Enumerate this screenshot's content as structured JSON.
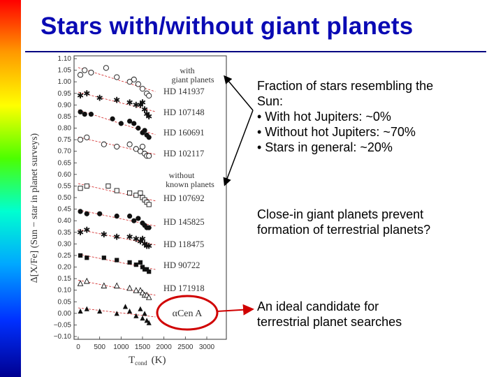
{
  "slide": {
    "title": "Stars with/without giant planets",
    "colors": {
      "title": "#0a0ab4",
      "sidebar_top": "#ff0000",
      "sidebar_bottom": "#000090",
      "callout": "#d00000"
    }
  },
  "figure": {
    "ylabel": "Δ[X/Fe] (Sun − star in planet surveys)",
    "xlabel": "T",
    "xlabel_sub": "cond",
    "xlabel_unit": "(K)",
    "y_ticks": [
      "1.10",
      "1.05",
      "1.00",
      "0.95",
      "0.90",
      "0.85",
      "0.80",
      "0.75",
      "0.70",
      "0.65",
      "0.60",
      "0.55",
      "0.50",
      "0.45",
      "0.40",
      "0.35",
      "0.30",
      "0.25",
      "0.20",
      "0.15",
      "0.10",
      "0.05",
      "0.00",
      "−0.05",
      "−0.10"
    ],
    "x_ticks": [
      "0",
      "500",
      "1000",
      "1500",
      "2000",
      "2500",
      "3000"
    ],
    "group_with": [
      "with",
      "giant planets"
    ],
    "group_without": [
      "without",
      "known planets"
    ],
    "stars": [
      "HD 141937",
      "HD 107148",
      "HD 160691",
      "HD 102117",
      "HD 107692",
      "HD 145825",
      "HD 118475",
      "HD 90722",
      "HD 171918"
    ],
    "callout_label": "αCen A"
  },
  "chart_data": {
    "type": "scatter",
    "xlabel": "T cond (K)",
    "ylabel": "Δ[X/Fe] (Sun − star in planet surveys)",
    "xlim": [
      0,
      3000
    ],
    "ylim": [
      -0.1,
      1.1
    ],
    "series": [
      {
        "name": "HD 141937",
        "marker": "open-circle",
        "x": [
          50,
          150,
          300,
          650,
          900,
          1200,
          1300,
          1400,
          1500,
          1600,
          1650
        ],
        "y": [
          1.03,
          1.05,
          1.04,
          1.06,
          1.02,
          1.0,
          1.01,
          0.99,
          0.97,
          0.95,
          0.94
        ]
      },
      {
        "name": "HD 107148",
        "marker": "star",
        "x": [
          50,
          200,
          500,
          900,
          1200,
          1350,
          1450,
          1500,
          1550,
          1600,
          1650
        ],
        "y": [
          0.94,
          0.95,
          0.93,
          0.92,
          0.91,
          0.9,
          0.9,
          0.91,
          0.88,
          0.86,
          0.85
        ]
      },
      {
        "name": "HD 160691",
        "marker": "filled-circle",
        "x": [
          50,
          150,
          300,
          800,
          1000,
          1200,
          1300,
          1400,
          1500,
          1550,
          1600,
          1650
        ],
        "y": [
          0.87,
          0.86,
          0.86,
          0.84,
          0.82,
          0.83,
          0.82,
          0.8,
          0.78,
          0.79,
          0.77,
          0.76
        ]
      },
      {
        "name": "HD 102117",
        "marker": "open-circle",
        "x": [
          50,
          200,
          600,
          900,
          1200,
          1350,
          1450,
          1500,
          1550,
          1600,
          1650
        ],
        "y": [
          0.75,
          0.76,
          0.73,
          0.72,
          0.73,
          0.71,
          0.7,
          0.72,
          0.69,
          0.68,
          0.68
        ]
      },
      {
        "name": "HD 107692",
        "marker": "open-square",
        "x": [
          50,
          200,
          700,
          900,
          1200,
          1350,
          1450,
          1500,
          1550,
          1600,
          1650
        ],
        "y": [
          0.54,
          0.55,
          0.55,
          0.53,
          0.52,
          0.51,
          0.52,
          0.5,
          0.49,
          0.48,
          0.47
        ]
      },
      {
        "name": "HD 145825",
        "marker": "filled-circle",
        "x": [
          50,
          200,
          500,
          900,
          1200,
          1300,
          1400,
          1500,
          1550,
          1600,
          1650
        ],
        "y": [
          0.44,
          0.43,
          0.43,
          0.42,
          0.42,
          0.4,
          0.41,
          0.39,
          0.38,
          0.37,
          0.37
        ]
      },
      {
        "name": "HD 118475",
        "marker": "star",
        "x": [
          50,
          200,
          600,
          900,
          1200,
          1350,
          1450,
          1500,
          1550,
          1600,
          1650
        ],
        "y": [
          0.35,
          0.36,
          0.34,
          0.33,
          0.33,
          0.32,
          0.31,
          0.32,
          0.3,
          0.29,
          0.29
        ]
      },
      {
        "name": "HD 90722",
        "marker": "filled-square",
        "x": [
          50,
          200,
          600,
          900,
          1200,
          1350,
          1450,
          1500,
          1550,
          1600,
          1650
        ],
        "y": [
          0.25,
          0.24,
          0.24,
          0.23,
          0.22,
          0.21,
          0.22,
          0.2,
          0.19,
          0.19,
          0.18
        ]
      },
      {
        "name": "HD 171918",
        "marker": "open-triangle",
        "x": [
          50,
          200,
          600,
          900,
          1200,
          1350,
          1450,
          1500,
          1550,
          1600,
          1650
        ],
        "y": [
          0.13,
          0.14,
          0.12,
          0.12,
          0.11,
          0.1,
          0.1,
          0.09,
          0.08,
          0.08,
          0.07
        ]
      },
      {
        "name": "αCen A",
        "marker": "filled-triangle",
        "x": [
          50,
          200,
          500,
          900,
          1100,
          1200,
          1350,
          1450,
          1500,
          1550,
          1600,
          1650
        ],
        "y": [
          0.01,
          0.02,
          0.01,
          0.0,
          0.03,
          0.01,
          -0.01,
          0.02,
          -0.02,
          0.0,
          -0.03,
          -0.04
        ]
      }
    ]
  },
  "notes": {
    "block1": [
      "Fraction of stars resembling the",
      "Sun:",
      "• With hot Jupiters: ~0%",
      "• Without hot Jupiters: ~70%",
      "• Stars in general: ~20%"
    ],
    "block2": [
      "Close-in giant planets prevent",
      "formation of terrestrial planets?"
    ],
    "block3": [
      "An ideal candidate for",
      "terrestrial planet searches"
    ]
  }
}
